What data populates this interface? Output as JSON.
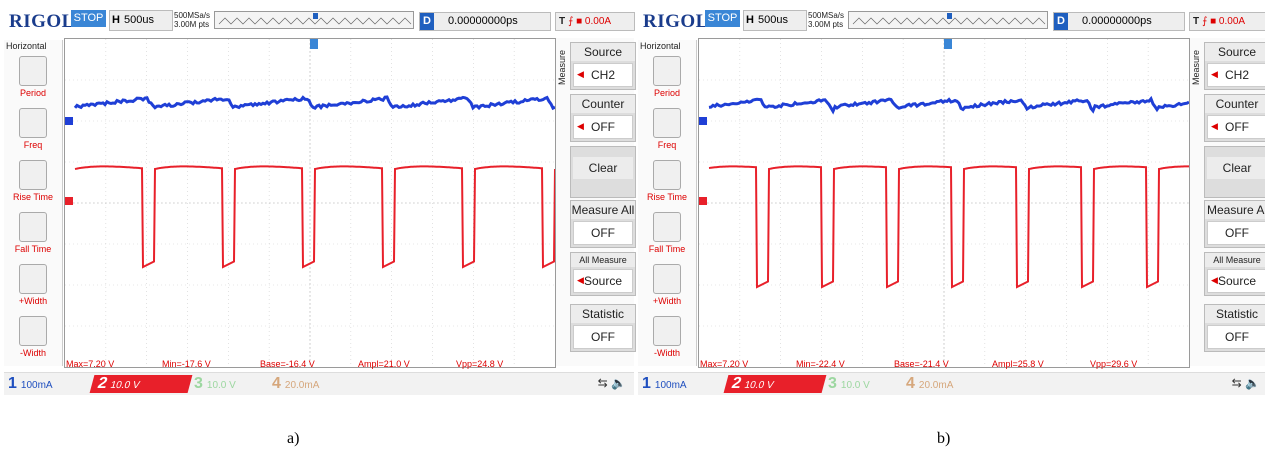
{
  "brand": "RIGOL",
  "colors": {
    "ch1": "#1f3fd6",
    "ch2": "#e8202a",
    "stop": "#3a86d6"
  },
  "scopes": [
    {
      "id": "a",
      "caption": "a)",
      "status": "STOP",
      "h_label": "H",
      "timebase": "500us",
      "sample_rate": "500MSa/s",
      "points": "3.00M pts",
      "d_label": "D",
      "delay": "0.00000000ps",
      "trigger_label": "T",
      "trigger_level": "0.00A",
      "horizontal_title": "Horizontal",
      "measure_items": [
        {
          "label": "Period",
          "icon": "period-icon"
        },
        {
          "label": "Freq",
          "icon": "freq-icon"
        },
        {
          "label": "Rise Time",
          "icon": "rise-time-icon"
        },
        {
          "label": "Fall Time",
          "icon": "fall-time-icon"
        },
        {
          "label": "+Width",
          "icon": "plus-width-icon"
        },
        {
          "label": "-Width",
          "icon": "minus-width-icon"
        }
      ],
      "measure_tab": "Measure",
      "right_menu": {
        "source_label": "Source",
        "source_value": "CH2",
        "counter_label": "Counter",
        "counter_value": "OFF",
        "clear_label": "Clear",
        "measure_all_label": "Measure All",
        "measure_all_value": "OFF",
        "all_measure_label": "All Measure",
        "all_measure_value": "Source",
        "statistic_label": "Statistic",
        "statistic_value": "OFF"
      },
      "measurements": {
        "max": "Max=7.20 V",
        "min": "Min=-17.6 V",
        "base": "Base=-16.4 V",
        "ampl": "Ampl=21.0 V",
        "vpp": "Vpp=24.8 V"
      },
      "channels": {
        "ch1_num": "1",
        "ch1_scale": "100mA",
        "ch2_num": "2",
        "ch2_scale": "10.0 V",
        "ch3_num": "3",
        "ch3_scale": "10.0 V",
        "ch4_num": "4",
        "ch4_scale": "20.0mA"
      }
    },
    {
      "id": "b",
      "caption": "b)",
      "status": "STOP",
      "h_label": "H",
      "timebase": "500us",
      "sample_rate": "500MSa/s",
      "points": "3.00M pts",
      "d_label": "D",
      "delay": "0.00000000ps",
      "trigger_label": "T",
      "trigger_level": "0.00A",
      "horizontal_title": "Horizontal",
      "measure_items": [
        {
          "label": "Period",
          "icon": "period-icon"
        },
        {
          "label": "Freq",
          "icon": "freq-icon"
        },
        {
          "label": "Rise Time",
          "icon": "rise-time-icon"
        },
        {
          "label": "Fall Time",
          "icon": "fall-time-icon"
        },
        {
          "label": "+Width",
          "icon": "plus-width-icon"
        },
        {
          "label": "-Width",
          "icon": "minus-width-icon"
        }
      ],
      "measure_tab": "Measure",
      "right_menu": {
        "source_label": "Source",
        "source_value": "CH2",
        "counter_label": "Counter",
        "counter_value": "OFF",
        "clear_label": "Clear",
        "measure_all_label": "Measure Al",
        "measure_all_value": "OFF",
        "all_measure_label": "All Measure",
        "all_measure_value": "Source",
        "statistic_label": "Statistic",
        "statistic_value": "OFF"
      },
      "measurements": {
        "max": "Max=7.20 V",
        "min": "Min=-22.4 V",
        "base": "Base=-21.4 V",
        "ampl": "Ampl=25.8 V",
        "vpp": "Vpp=29.6 V"
      },
      "channels": {
        "ch1_num": "1",
        "ch1_scale": "100mA",
        "ch2_num": "2",
        "ch2_scale": "10.0 V",
        "ch3_num": "3",
        "ch3_scale": "10.0 V",
        "ch4_num": "4",
        "ch4_scale": "20.0mA"
      }
    }
  ]
}
